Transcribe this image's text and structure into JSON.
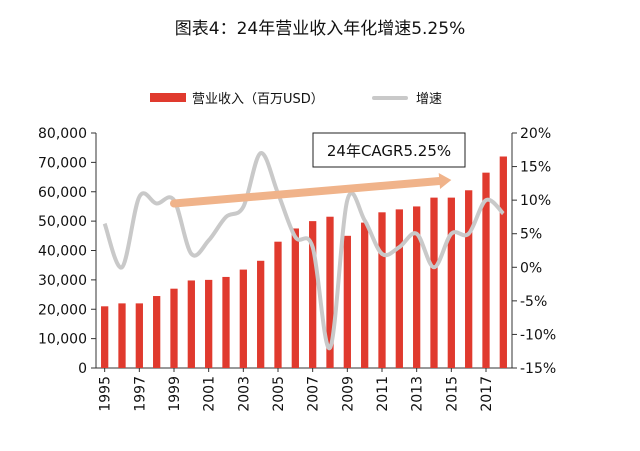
{
  "title": "图表4：24年营业收入年化增速5.25%",
  "chart_data": {
    "type": "bar",
    "title": "图表4：24年营业收入年化增速5.25%",
    "x": [
      1995,
      1996,
      1997,
      1998,
      1999,
      2000,
      2001,
      2002,
      2003,
      2004,
      2005,
      2006,
      2007,
      2008,
      2009,
      2010,
      2011,
      2012,
      2013,
      2014,
      2015,
      2016,
      2017,
      2018
    ],
    "x_tick_labels": [
      "1995",
      "1997",
      "1999",
      "2001",
      "2003",
      "2005",
      "2007",
      "2009",
      "2011",
      "2013",
      "2015",
      "2017"
    ],
    "series": [
      {
        "name": "营业收入（百万USD）",
        "type": "bar",
        "axis": "left",
        "color": "#e03a2e",
        "values": [
          21000,
          22000,
          22000,
          24500,
          27000,
          29800,
          30000,
          31000,
          33500,
          36500,
          43000,
          47500,
          50000,
          51500,
          45000,
          49500,
          53000,
          54000,
          55000,
          58000,
          58000,
          60500,
          66500,
          72000
        ]
      },
      {
        "name": "增速",
        "type": "line",
        "axis": "right",
        "color": "#c9c9c9",
        "values": [
          6.5,
          0,
          10.5,
          9.5,
          10,
          2,
          4,
          7.5,
          9,
          17,
          11,
          4.5,
          3,
          -12,
          10,
          7,
          2,
          3,
          5,
          0,
          5,
          5,
          10,
          8
        ]
      }
    ],
    "y_left": {
      "ylim": [
        0,
        80000
      ],
      "ticks": [
        "0",
        "10,000",
        "20,000",
        "30,000",
        "40,000",
        "50,000",
        "60,000",
        "70,000",
        "80,000"
      ]
    },
    "y_right": {
      "ylim": [
        -15,
        20
      ],
      "ticks": [
        "-15%",
        "-10%",
        "-5%",
        "0%",
        "5%",
        "10%",
        "15%",
        "20%"
      ]
    },
    "annotation": {
      "text": "24年CAGR5.25%",
      "arrow_color": "#f0b38a",
      "from": [
        1999,
        9.5
      ],
      "to": [
        2015,
        13
      ]
    },
    "legend": {
      "placement": "top"
    },
    "grid": false
  }
}
